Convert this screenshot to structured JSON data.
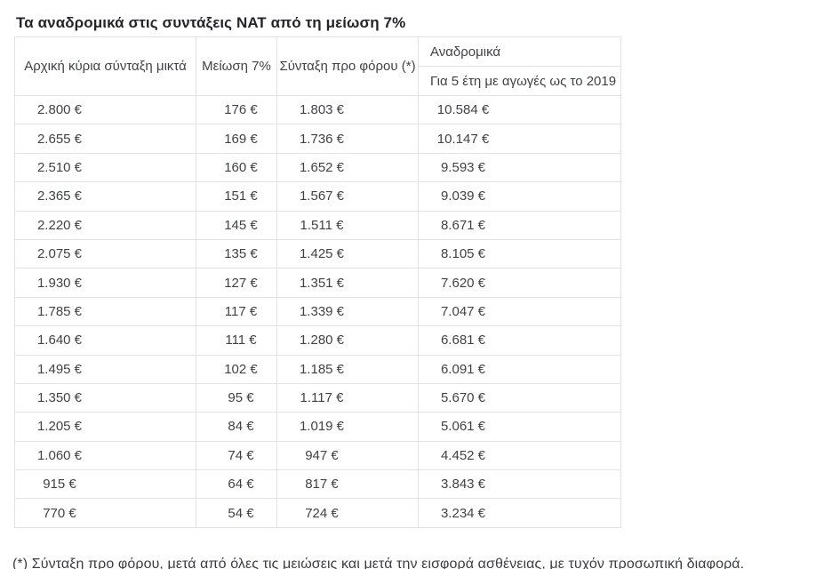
{
  "page": {
    "title": "Τα αναδρομικά στις συντάξεις ΝΑΤ από τη μείωση 7%",
    "footnote": "(*) Σύνταξη προ φόρου, μετά από όλες τις μειώσεις και μετά την εισφορά ασθένειας, με τυχόν προσωπική διαφορά."
  },
  "colors": {
    "border": "#e1e2e4",
    "cell_text": "#3f4247",
    "title_text": "#232528",
    "background": "#ffffff"
  },
  "table": {
    "headers": {
      "initial_gross_pension": "Αρχική κύρια σύνταξη μικτά",
      "reduction_7pct": "Μείωση 7%",
      "pension_before_tax": "Σύνταξη προ φόρου (*)",
      "retroactive": "Αναδρομικά",
      "retroactive_sub": "Για 5 έτη με αγωγές ως το 2019"
    },
    "rows": [
      [
        "2.800 €",
        "176 €",
        "1.803 €",
        "10.584 €"
      ],
      [
        "2.655 €",
        "169 €",
        "1.736 €",
        "10.147 €"
      ],
      [
        "2.510 €",
        "160 €",
        "1.652 €",
        "9.593 €"
      ],
      [
        "2.365 €",
        "151 €",
        "1.567 €",
        "9.039 €"
      ],
      [
        "2.220 €",
        "145 €",
        "1.511 €",
        "8.671 €"
      ],
      [
        "2.075 €",
        "135 €",
        "1.425 €",
        "8.105 €"
      ],
      [
        "1.930 €",
        "127 €",
        "1.351 €",
        "7.620 €"
      ],
      [
        "1.785 €",
        "117 €",
        "1.339 €",
        "7.047 €"
      ],
      [
        "1.640 €",
        "111 €",
        "1.280 €",
        "6.681 €"
      ],
      [
        "1.495 €",
        "102 €",
        "1.185 €",
        "6.091 €"
      ],
      [
        "1.350 €",
        "95 €",
        "1.117 €",
        "5.670 €"
      ],
      [
        "1.205 €",
        "84 €",
        "1.019 €",
        "5.061 €"
      ],
      [
        "1.060 €",
        "74 €",
        "947 €",
        "4.452 €"
      ],
      [
        "915 €",
        "64 €",
        "817 €",
        "3.843 €"
      ],
      [
        "770 €",
        "54 €",
        "724 €",
        "3.234 €"
      ]
    ]
  }
}
